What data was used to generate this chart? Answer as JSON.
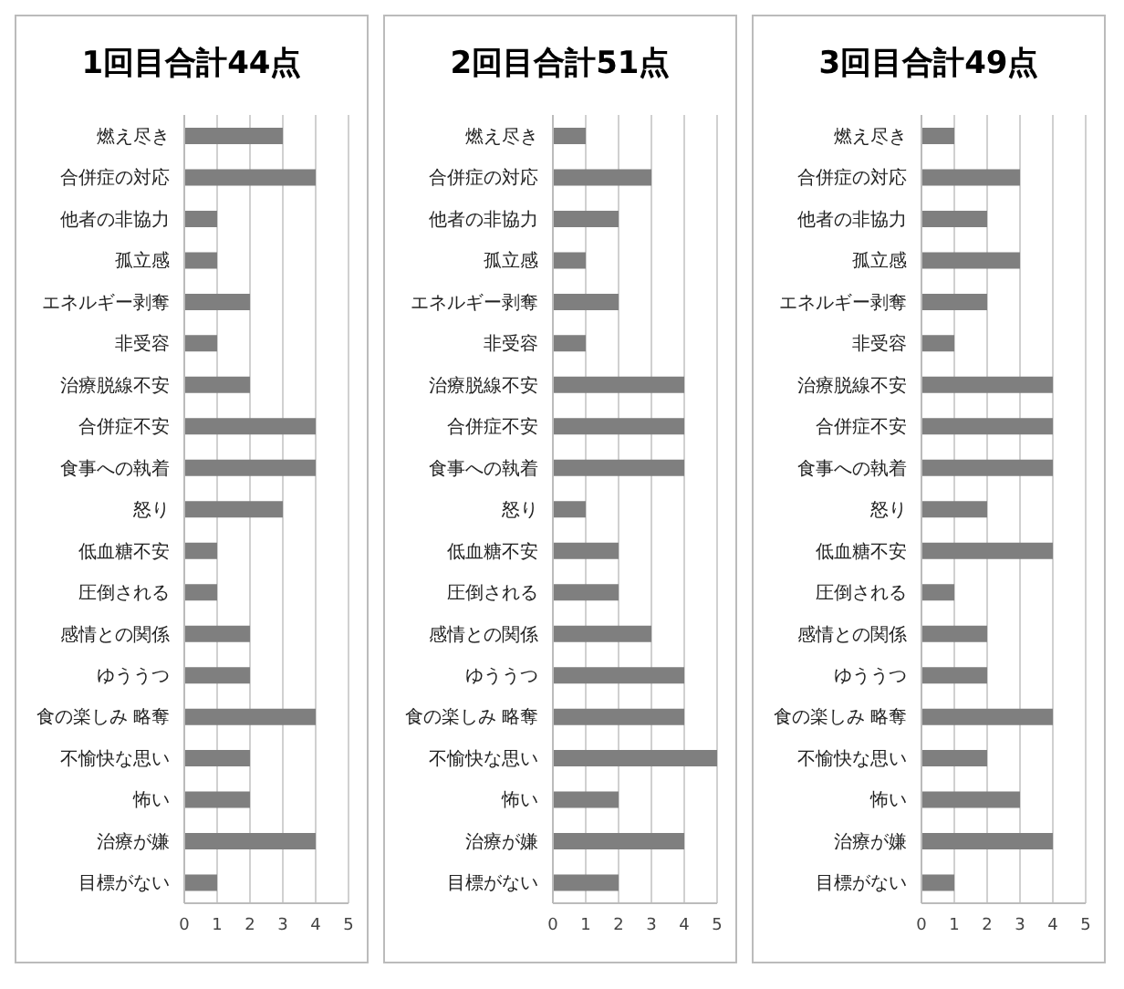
{
  "chart_data": [
    {
      "type": "bar",
      "orientation": "horizontal",
      "title": "1回目合計44点",
      "categories": [
        "燃え尽き",
        "合併症の対応",
        "他者の非協力",
        "孤立感",
        "エネルギー剥奪",
        "非受容",
        "治療脱線不安",
        "合併症不安",
        "食事への執着",
        "怒り",
        "低血糖不安",
        "圧倒される",
        "感情との関係",
        "ゆううつ",
        "食の楽しみ 略奪",
        "不愉快な思い",
        "怖い",
        "治療が嫌",
        "目標がない"
      ],
      "values": [
        3,
        4,
        1,
        1,
        2,
        1,
        2,
        4,
        4,
        3,
        1,
        1,
        2,
        2,
        4,
        2,
        2,
        4,
        1
      ],
      "color": "#7f7f7f",
      "xlim": [
        0,
        5
      ],
      "xticks": [
        0,
        1,
        2,
        3,
        4,
        5
      ],
      "grid": "x"
    },
    {
      "type": "bar",
      "orientation": "horizontal",
      "title": "2回目合計51点",
      "categories": [
        "燃え尽き",
        "合併症の対応",
        "他者の非協力",
        "孤立感",
        "エネルギー剥奪",
        "非受容",
        "治療脱線不安",
        "合併症不安",
        "食事への執着",
        "怒り",
        "低血糖不安",
        "圧倒される",
        "感情との関係",
        "ゆううつ",
        "食の楽しみ 略奪",
        "不愉快な思い",
        "怖い",
        "治療が嫌",
        "目標がない"
      ],
      "values": [
        1,
        3,
        2,
        1,
        2,
        1,
        4,
        4,
        4,
        1,
        2,
        2,
        3,
        4,
        4,
        5,
        2,
        4,
        2
      ],
      "color": "#7f7f7f",
      "xlim": [
        0,
        5
      ],
      "xticks": [
        0,
        1,
        2,
        3,
        4,
        5
      ],
      "grid": "x"
    },
    {
      "type": "bar",
      "orientation": "horizontal",
      "title": "3回目合計49点",
      "categories": [
        "燃え尽き",
        "合併症の対応",
        "他者の非協力",
        "孤立感",
        "エネルギー剥奪",
        "非受容",
        "治療脱線不安",
        "合併症不安",
        "食事への執着",
        "怒り",
        "低血糖不安",
        "圧倒される",
        "感情との関係",
        "ゆううつ",
        "食の楽しみ 略奪",
        "不愉快な思い",
        "怖い",
        "治療が嫌",
        "目標がない"
      ],
      "values": [
        1,
        3,
        2,
        3,
        2,
        1,
        4,
        4,
        4,
        2,
        4,
        1,
        2,
        2,
        4,
        2,
        3,
        4,
        1
      ],
      "color": "#7f7f7f",
      "xlim": [
        0,
        5
      ],
      "xticks": [
        0,
        1,
        2,
        3,
        4,
        5
      ],
      "grid": "x"
    }
  ]
}
